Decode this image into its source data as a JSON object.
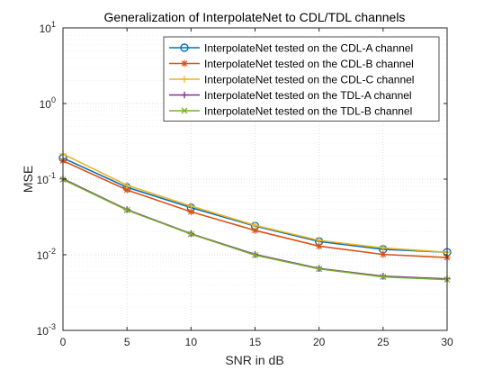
{
  "chart_data": {
    "type": "line",
    "title": "Generalization of InterpolateNet to CDL/TDL channels",
    "xlabel": "SNR in dB",
    "ylabel": "MSE",
    "x": [
      0,
      5,
      10,
      15,
      20,
      25,
      30
    ],
    "xlim": [
      0,
      30
    ],
    "ylim": [
      0.001,
      10
    ],
    "yscale": "log",
    "grid": true,
    "minor_grid": true,
    "legend_position": "top-right",
    "x_tick_labels": [
      "0",
      "5",
      "10",
      "15",
      "20",
      "25",
      "30"
    ],
    "y_ticks": [
      {
        "value": 0.001,
        "base": "10",
        "exp": "-3"
      },
      {
        "value": 0.01,
        "base": "10",
        "exp": "-2"
      },
      {
        "value": 0.1,
        "base": "10",
        "exp": "-1"
      },
      {
        "value": 1,
        "base": "10",
        "exp": "0"
      },
      {
        "value": 10,
        "base": "10",
        "exp": "1"
      }
    ],
    "series": [
      {
        "name": "InterpolateNet tested on the CDL-A channel",
        "color": "#0072BD",
        "marker": "circle",
        "values": [
          0.19,
          0.078,
          0.042,
          0.024,
          0.015,
          0.0118,
          0.0108
        ]
      },
      {
        "name": "InterpolateNet tested on the CDL-B channel",
        "color": "#D95319",
        "marker": "star",
        "values": [
          0.175,
          0.072,
          0.037,
          0.021,
          0.013,
          0.0101,
          0.0092
        ]
      },
      {
        "name": "InterpolateNet tested on the CDL-C channel",
        "color": "#EDB120",
        "marker": "plus",
        "values": [
          0.215,
          0.083,
          0.044,
          0.0245,
          0.0155,
          0.0123,
          0.0108
        ]
      },
      {
        "name": "InterpolateNet tested on the TDL-A channel",
        "color": "#7E2F8E",
        "marker": "plus",
        "values": [
          0.101,
          0.0395,
          0.019,
          0.0101,
          0.0066,
          0.0052,
          0.0048
        ]
      },
      {
        "name": "InterpolateNet tested on the TDL-B channel",
        "color": "#77AC30",
        "marker": "x",
        "values": [
          0.099,
          0.039,
          0.0188,
          0.0099,
          0.0065,
          0.0051,
          0.0047
        ]
      }
    ]
  }
}
